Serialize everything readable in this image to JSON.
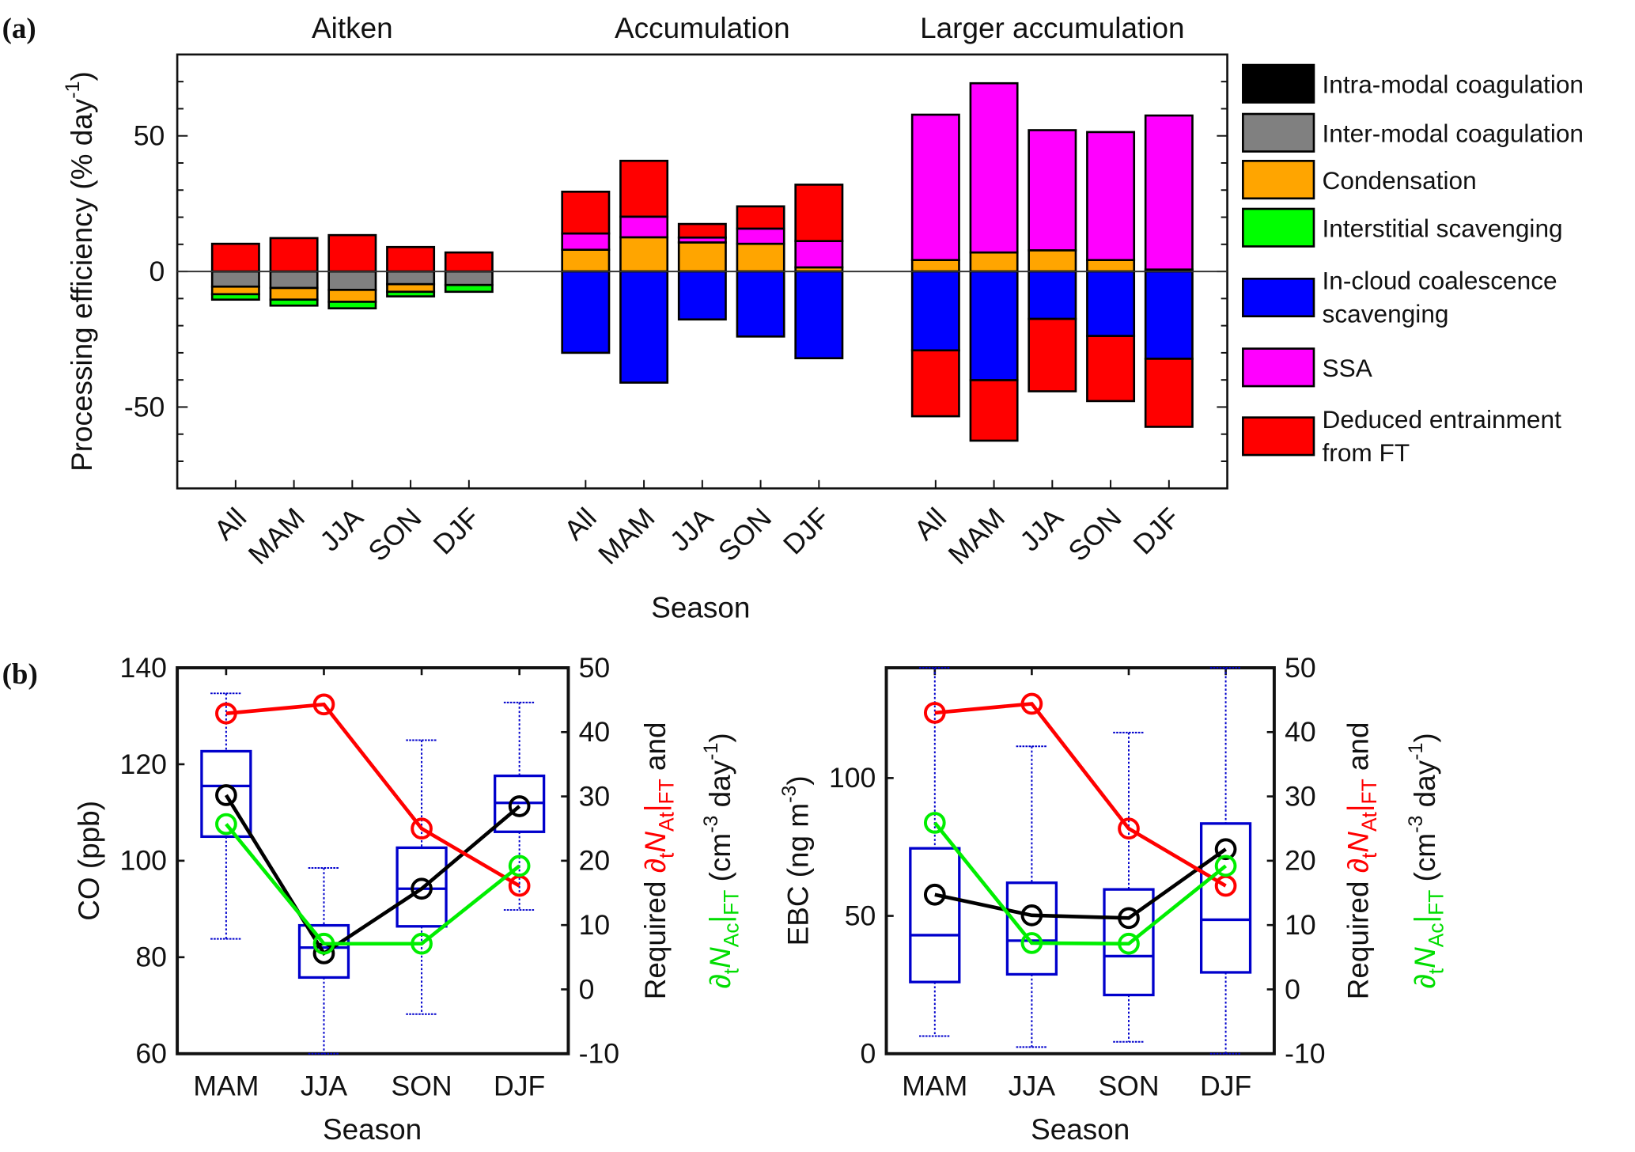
{
  "panel_a": {
    "panel_label": "(a)",
    "ylabel": "Processing efficiency (%  day",
    "ylabel_sup": "-1",
    "ylabel_end": ")",
    "xlabel": "Season",
    "zero_line_color": "#333333"
  },
  "panel_b": {
    "panel_label": "(b)",
    "left": {
      "ylabel": "CO (ppb)",
      "xlabel": "Season"
    },
    "right": {
      "ylabel": "EBC (ng m",
      "ylabel_sup": "-3",
      "ylabel_end": ")",
      "xlabel": "Season"
    },
    "y2label": {
      "line1_prefix": "Required ",
      "line1_partial": "∂",
      "line1_t": "t",
      "line1_N": "N",
      "line1_sub": "At",
      "line1_bar": "|",
      "line1_ft": "FT",
      "line1_suffix": " and",
      "line2_partial": "∂",
      "line2_t": "t",
      "line2_N": "N",
      "line2_sub": "Ac",
      "line2_bar": "|",
      "line2_ft": "FT",
      "line2_unit": " (cm",
      "line2_sup1": "-3",
      "line2_mid": " day",
      "line2_sup2": "-1",
      "line2_end": ")"
    }
  },
  "chart_data": [
    {
      "type": "bar",
      "stacked": true,
      "groups": [
        {
          "title": "Aitken",
          "categories": [
            "All",
            "MAM",
            "JJA",
            "SON",
            "DJF"
          ]
        },
        {
          "title": "Accumulation",
          "categories": [
            "All",
            "MAM",
            "JJA",
            "SON",
            "DJF"
          ]
        },
        {
          "title": "Larger accumulation",
          "categories": [
            "All",
            "MAM",
            "JJA",
            "SON",
            "DJF"
          ]
        }
      ],
      "xlabel": "Season",
      "ylabel": "Processing efficiency (% day-1)",
      "ylim": [
        -80,
        80
      ],
      "yticks": [
        -50,
        0,
        50
      ],
      "legend_position": "right",
      "series": [
        {
          "name": "Intra-modal coagulation",
          "color": "#000000",
          "values": [
            0,
            0,
            0,
            0,
            0,
            0,
            0,
            0,
            0,
            0,
            0,
            0,
            0,
            0,
            0
          ]
        },
        {
          "name": "Inter-modal coagulation",
          "color": "#808080",
          "values": [
            -5.6,
            -6.1,
            -6.8,
            -4.7,
            -5,
            0,
            0,
            0,
            0,
            0,
            0,
            0,
            0,
            0,
            0
          ]
        },
        {
          "name": "Condensation",
          "color": "#FFA500",
          "values": [
            -2.8,
            -4.3,
            -4.4,
            -2.8,
            0,
            8,
            12.6,
            10.7,
            10.2,
            1.5,
            4.2,
            7,
            7.8,
            4.2,
            0.7
          ]
        },
        {
          "name": "Interstitial scavenging",
          "color": "#00FF00",
          "values": [
            -2,
            -2.2,
            -2.4,
            -1.7,
            -2.5,
            0,
            0,
            0,
            0,
            0,
            0,
            0,
            0,
            0,
            0
          ]
        },
        {
          "name": "In-cloud coalescence scavenging",
          "color": "#0000FF",
          "values": [
            0,
            0,
            0,
            0,
            0,
            -30,
            -41,
            -17.7,
            -24,
            -32,
            -29.1,
            -40.1,
            -17.5,
            -23.8,
            -32.2
          ]
        },
        {
          "name": "SSA",
          "color": "#FF00FF",
          "values": [
            0,
            0,
            0,
            0,
            0,
            6,
            7.6,
            1.8,
            5.6,
            9.7,
            53.6,
            62.4,
            44.3,
            47.2,
            56.8
          ]
        },
        {
          "name": "Deduced entrainment from FT",
          "color": "#FF0000",
          "values": [
            10.2,
            12.3,
            13.4,
            9,
            7,
            15.4,
            20.6,
            5,
            8.2,
            20.8,
            -24.3,
            -22.3,
            -26.7,
            -24,
            -25.1
          ]
        }
      ]
    },
    {
      "type": "box",
      "categories": [
        "MAM",
        "JJA",
        "SON",
        "DJF"
      ],
      "xlabel": "Season",
      "ylabel": "CO (ppb)",
      "ylim": [
        60,
        140
      ],
      "yticks": [
        60,
        80,
        100,
        120,
        140
      ],
      "y2label": "Required ∂tNAt|FT and ∂tNAc|FT (cm-3 day-1)",
      "y2lim": [
        -10,
        50
      ],
      "y2ticks": [
        -10,
        0,
        10,
        20,
        30,
        40,
        50
      ],
      "box_color": "#0000CC",
      "boxes": [
        {
          "low": 83.8,
          "q1": 105,
          "median": 115.5,
          "q3": 122.7,
          "high": 134.7
        },
        {
          "low": 60,
          "q1": 75.8,
          "median": 82,
          "q3": 86.6,
          "high": 98.5
        },
        {
          "low": 68.2,
          "q1": 86.4,
          "median": 94.2,
          "q3": 102.7,
          "high": 125
        },
        {
          "low": 89.8,
          "q1": 106,
          "median": 112,
          "q3": 117.6,
          "high": 132.8
        }
      ],
      "lines": [
        {
          "axis": "left",
          "color": "#000000",
          "values": [
            113.6,
            80.8,
            94.2,
            111.3
          ]
        },
        {
          "axis": "right",
          "color": "#FF0000",
          "values": [
            42.9,
            44.3,
            25,
            16.1
          ]
        },
        {
          "axis": "right",
          "color": "#00EE00",
          "values": [
            25.7,
            7.1,
            7.1,
            19.2
          ]
        }
      ]
    },
    {
      "type": "box",
      "categories": [
        "MAM",
        "JJA",
        "SON",
        "DJF"
      ],
      "xlabel": "Season",
      "ylabel": "EBC (ng m-3)",
      "ylim": [
        0,
        140
      ],
      "yticks": [
        0,
        50,
        100
      ],
      "y2label": "Required ∂tNAt|FT and ∂tNAc|FT (cm-3 day-1)",
      "y2lim": [
        -10,
        50
      ],
      "y2ticks": [
        -10,
        0,
        10,
        20,
        30,
        40,
        50
      ],
      "box_color": "#0000CC",
      "boxes": [
        {
          "low": 6.4,
          "q1": 26,
          "median": 43,
          "q3": 74.5,
          "high": 140
        },
        {
          "low": 2.4,
          "q1": 28.8,
          "median": 41,
          "q3": 62,
          "high": 111.5
        },
        {
          "low": 4.3,
          "q1": 21.3,
          "median": 35.4,
          "q3": 59.6,
          "high": 116.5
        },
        {
          "low": 0,
          "q1": 29.5,
          "median": 48.6,
          "q3": 83.5,
          "high": 140
        }
      ],
      "lines": [
        {
          "axis": "left",
          "color": "#000000",
          "values": [
            57.7,
            50.2,
            49.2,
            74.2
          ]
        },
        {
          "axis": "right",
          "color": "#FF0000",
          "values": [
            43,
            44.4,
            25,
            16.1
          ]
        },
        {
          "axis": "right",
          "color": "#00EE00",
          "values": [
            25.9,
            7.2,
            7.1,
            19.2
          ]
        }
      ]
    }
  ]
}
